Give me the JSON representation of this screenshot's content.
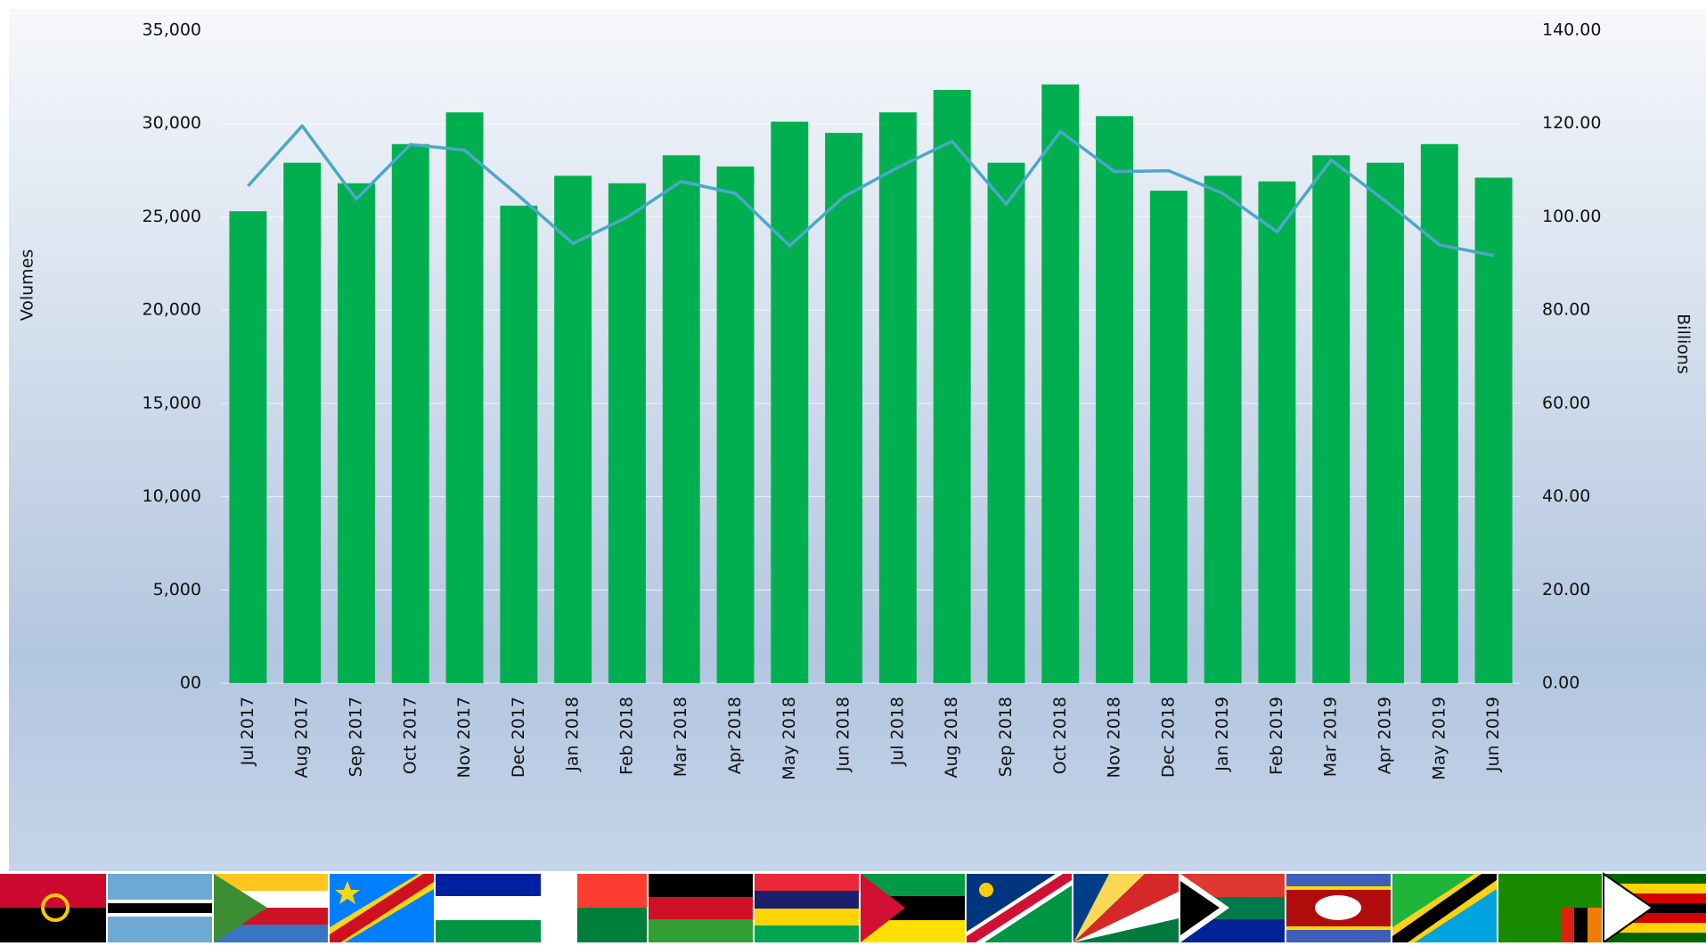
{
  "chart_data": {
    "type": "bar-line",
    "categories": [
      "Jul 2017",
      "Aug 2017",
      "Sep 2017",
      "Oct 2017",
      "Nov 2017",
      "Dec 2017",
      "Jan 2018",
      "Feb 2018",
      "Mar 2018",
      "Apr 2018",
      "May 2018",
      "Jun 2018",
      "Jul 2018",
      "Aug 2018",
      "Sep 2018",
      "Oct 2018",
      "Nov 2018",
      "Dec 2018",
      "Jan 2019",
      "Feb 2019",
      "Mar 2019",
      "Apr 2019",
      "May 2019",
      "Jun 2019"
    ],
    "series": [
      {
        "type": "bar",
        "color": "#00b050",
        "values": [
          25300,
          27900,
          26800,
          28900,
          30600,
          25600,
          27200,
          26800,
          28300,
          27700,
          30100,
          29500,
          30600,
          31800,
          27900,
          32100,
          30400,
          26400,
          27200,
          26900,
          28300,
          27900,
          28900,
          27100
        ]
      },
      {
        "type": "line",
        "axis": "y2",
        "color": "#4aa8c8",
        "values": [
          106.6,
          119.5,
          103.8,
          115.5,
          114.3,
          104.5,
          94.3,
          99.9,
          107.6,
          105,
          93.8,
          104.3,
          110.6,
          116.2,
          102.7,
          118.3,
          109.7,
          109.9,
          105,
          96.8,
          112.2,
          103.4,
          94,
          91.7
        ]
      }
    ],
    "ylabel": "Volumes",
    "y2label": "Billions",
    "ylim": [
      0,
      35000
    ],
    "yticks": [
      {
        "value": 0,
        "label": "00"
      },
      {
        "value": 5000,
        "label": "5,000"
      },
      {
        "value": 10000,
        "label": "10,000"
      },
      {
        "value": 15000,
        "label": "15,000"
      },
      {
        "value": 20000,
        "label": "20,000"
      },
      {
        "value": 25000,
        "label": "25,000"
      },
      {
        "value": 30000,
        "label": "30,000"
      },
      {
        "value": 35000,
        "label": "35,000"
      }
    ],
    "y2lim": [
      0,
      140
    ],
    "y2ticks": [
      {
        "value": 0,
        "label": "0.00"
      },
      {
        "value": 20,
        "label": "20.00"
      },
      {
        "value": 40,
        "label": "40.00"
      },
      {
        "value": 60,
        "label": "60.00"
      },
      {
        "value": 80,
        "label": "80.00"
      },
      {
        "value": 100,
        "label": "100.00"
      },
      {
        "value": 120,
        "label": "120.00"
      },
      {
        "value": 140,
        "label": "140.00"
      }
    ],
    "grid": true
  }
}
